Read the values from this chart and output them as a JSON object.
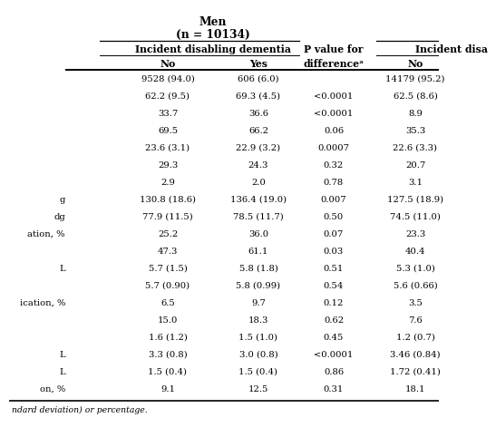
{
  "title_line1": "Men",
  "title_line2": "(n = 10134)",
  "rows": [
    [
      "9528 (94.0)",
      "606 (6.0)",
      "",
      "14179 (95.2)"
    ],
    [
      "62.2 (9.5)",
      "69.3 (4.5)",
      "<0.0001",
      "62.5 (8.6)"
    ],
    [
      "33.7",
      "36.6",
      "<0.0001",
      "8.9"
    ],
    [
      "69.5",
      "66.2",
      "0.06",
      "35.3"
    ],
    [
      "23.6 (3.1)",
      "22.9 (3.2)",
      "0.0007",
      "22.6 (3.3)"
    ],
    [
      "29.3",
      "24.3",
      "0.32",
      "20.7"
    ],
    [
      "2.9",
      "2.0",
      "0.78",
      "3.1"
    ],
    [
      "130.8 (18.6)",
      "136.4 (19.0)",
      "0.007",
      "127.5 (18.9)"
    ],
    [
      "77.9 (11.5)",
      "78.5 (11.7)",
      "0.50",
      "74.5 (11.0)"
    ],
    [
      "25.2",
      "36.0",
      "0.07",
      "23.3"
    ],
    [
      "47.3",
      "61.1",
      "0.03",
      "40.4"
    ],
    [
      "5.7 (1.5)",
      "5.8 (1.8)",
      "0.51",
      "5.3 (1.0)"
    ],
    [
      "5.7 (0.90)",
      "5.8 (0.99)",
      "0.54",
      "5.6 (0.66)"
    ],
    [
      "6.5",
      "9.7",
      "0.12",
      "3.5"
    ],
    [
      "15.0",
      "18.3",
      "0.62",
      "7.6"
    ],
    [
      "1.6 (1.2)",
      "1.5 (1.0)",
      "0.45",
      "1.2 (0.7)"
    ],
    [
      "3.3 (0.8)",
      "3.0 (0.8)",
      "<0.0001",
      "3.46 (0.84)"
    ],
    [
      "1.5 (0.4)",
      "1.5 (0.4)",
      "0.86",
      "1.72 (0.41)"
    ],
    [
      "9.1",
      "12.5",
      "0.31",
      "18.1"
    ]
  ],
  "row_labels": [
    "",
    "",
    "",
    "",
    "",
    "",
    "",
    "g",
    "dg",
    "ation, %",
    "",
    "L",
    "",
    "ication, %",
    "",
    "",
    "L",
    "L",
    "on, %"
  ],
  "footer": "ndard deviation) or percentage.",
  "background_color": "#ffffff",
  "text_color": "#000000",
  "font_size": 7.2,
  "header_font_size": 7.8
}
